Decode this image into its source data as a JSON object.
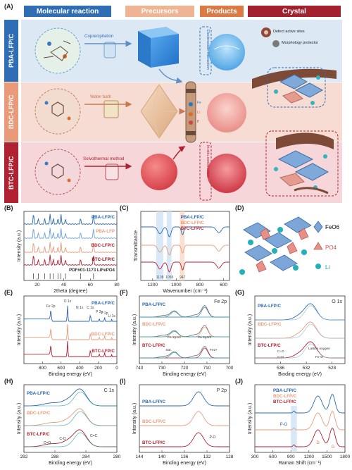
{
  "panel_a": {
    "letter": "(A)",
    "headers": [
      "Molecular reaction",
      "Precursors",
      "Products",
      "Crystal"
    ],
    "rows": [
      "PBA-LFP/C",
      "BDC-LFP/C",
      "BTC-LFP/C"
    ],
    "methods": [
      "Coprecipitation",
      "Water bath",
      "Solvothermal method"
    ],
    "annotations": [
      "Electrostatic interaction",
      "In-situ construction",
      "Defect active sites",
      "Morphology protector"
    ],
    "mof_letters": [
      "Fe",
      "Li",
      "P"
    ]
  },
  "panel_letters": {
    "b": "(B)",
    "c": "(C)",
    "d": "(D)",
    "e": "(E)",
    "f": "(F)",
    "g": "(G)",
    "h": "(H)",
    "i": "(I)",
    "j": "(J)"
  },
  "panel_d": {
    "legend": [
      "FeO6",
      "PO4",
      "Li"
    ]
  },
  "colors": {
    "blue": "#2b68b0",
    "peach": "#e99b79",
    "orange": "#e07b3d",
    "red": "#b02131",
    "dark_red": "#8a1422",
    "pink": "#d98b89",
    "teal": "#24a7b0"
  },
  "chart_data": [
    {
      "panel": "B",
      "type": "line",
      "xlabel": "2theta (degree)",
      "ylabel": "Intensity (a.u.)",
      "xlim": [
        10,
        80
      ],
      "xticks": [
        20,
        40,
        60,
        80
      ],
      "series_labels": [
        "PBA-LFP/C",
        "PBA-LFP",
        "BDC-LFP/C",
        "BTC-LFP/C",
        "PDF#01-1173 LiFePO4"
      ],
      "peaks_2theta": [
        17.2,
        20.8,
        25.6,
        29.7,
        32.2,
        35.6,
        37.9,
        41.3,
        52.6,
        62.4
      ]
    },
    {
      "panel": "C",
      "type": "line",
      "xlabel": "Wavenumber (cm⁻¹)",
      "ylabel": "Transmittance",
      "xlim": [
        1300,
        550
      ],
      "xticks": [
        1200,
        1000,
        800,
        600
      ],
      "series_labels": [
        "PBA-LFP/C",
        "BDC-LFP/C",
        "BTC-LFP/C"
      ],
      "bands": [
        "1138",
        "1058",
        "947"
      ]
    },
    {
      "panel": "E",
      "type": "line",
      "xlabel": "Binding energy (eV)",
      "ylabel": "Intensity (a.u.)",
      "xlim": [
        1000,
        0
      ],
      "xticks": [
        800,
        600,
        400,
        200,
        0
      ],
      "series_labels": [
        "PBA-LFP/C",
        "BDC-LFP/C",
        "BTC-LFP/C"
      ],
      "peak_labels": [
        "Fe 2p",
        "O 1s",
        "N 1s",
        "C 1s",
        "P 2s",
        "P 2p",
        "Li 1s"
      ]
    },
    {
      "panel": "F",
      "type": "line",
      "title": "Fe 2p",
      "xlabel": "Binding energy (eV)",
      "ylabel": "Intensity (a.u.)",
      "xlim": [
        740,
        700
      ],
      "xticks": [
        740,
        730,
        720,
        710,
        700
      ],
      "series_labels": [
        "PBA-LFP/C",
        "BDC-LFP/C",
        "BTC-LFP/C"
      ],
      "peak_labels": [
        "Fe 2p1/2",
        "Fe 2p3/2",
        "Sat.",
        "Fe2+"
      ]
    },
    {
      "panel": "G",
      "type": "line",
      "title": "O 1s",
      "xlabel": "Binding energy (eV)",
      "ylabel": "Intensity (a.u.)",
      "xlim": [
        540,
        526
      ],
      "xticks": [
        536,
        532,
        528
      ],
      "series_labels": [
        "PBA-LFP/C",
        "BDC-LFP/C",
        "BTC-LFP/C"
      ],
      "peak_labels": [
        "C=O",
        "C-O",
        "Lattice oxygen",
        "Fe-O"
      ]
    },
    {
      "panel": "H",
      "type": "line",
      "title": "C 1s",
      "xlabel": "Binding energy (eV)",
      "ylabel": "Intensity (a.u.)",
      "xlim": [
        292,
        280
      ],
      "xticks": [
        292,
        288,
        284,
        280
      ],
      "series_labels": [
        "PBA-LFP/C",
        "BDC-LFP/C",
        "BTC-LFP/C"
      ],
      "peak_labels": [
        "C=O",
        "C-O",
        "C=C"
      ]
    },
    {
      "panel": "I",
      "type": "line",
      "title": "P 2p",
      "xlabel": "Binding energy (eV)",
      "ylabel": "Intensity (a.u.)",
      "xlim": [
        144,
        128
      ],
      "xticks": [
        144,
        140,
        136,
        132,
        128
      ],
      "series_labels": [
        "PBA-LFP/C",
        "BDC-LFP/C",
        "BTC-LFP/C"
      ],
      "peak_labels": [
        "P-O"
      ]
    },
    {
      "panel": "J",
      "type": "line",
      "xlabel": "Raman Shift (cm⁻¹)",
      "ylabel": "Intensity (a.u.)",
      "xlim": [
        300,
        1800
      ],
      "xticks": [
        300,
        600,
        900,
        1200,
        1500,
        1800
      ],
      "series_labels": [
        "PBA-LFP/C",
        "BDC-LFP/C",
        "BTC-LFP/C"
      ],
      "peak_labels": [
        "P-O",
        "D",
        "G"
      ]
    }
  ]
}
